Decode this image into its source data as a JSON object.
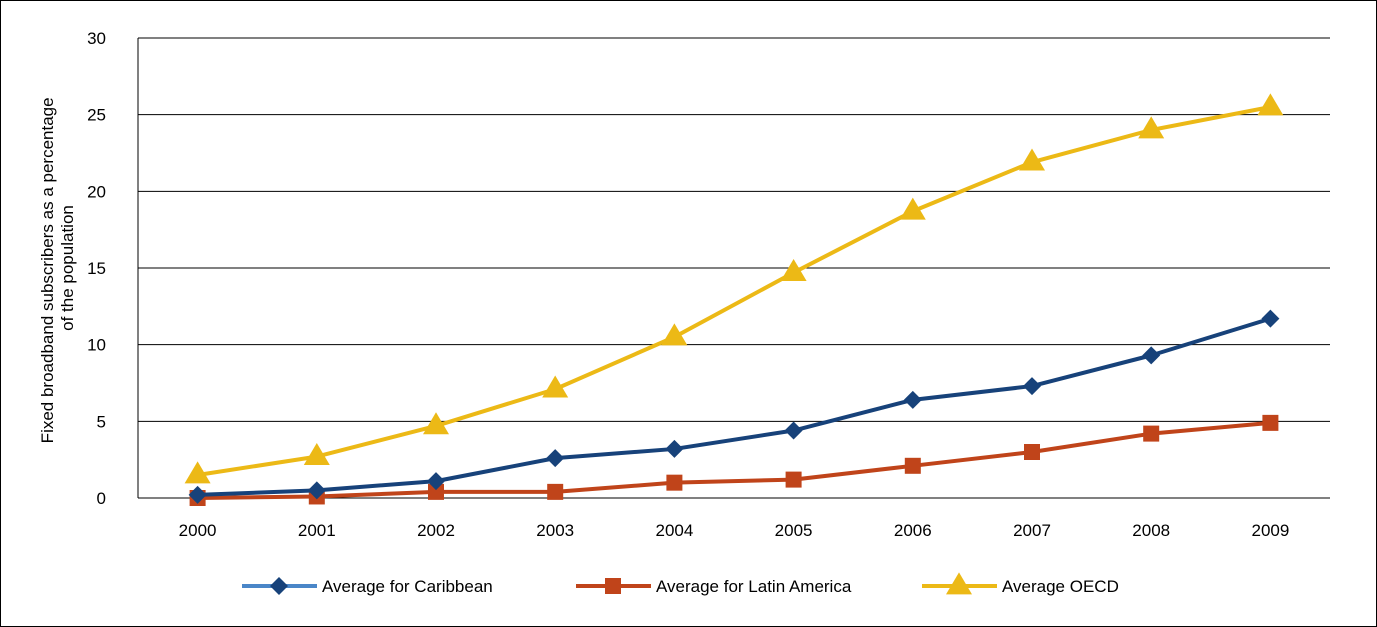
{
  "chart_data": {
    "type": "line",
    "title": "",
    "xlabel": "",
    "ylabel_lines": [
      "Fixed broadband subscribers as a percentage",
      "of the population"
    ],
    "categories": [
      "2000",
      "2001",
      "2002",
      "2003",
      "2004",
      "2005",
      "2006",
      "2007",
      "2008",
      "2009"
    ],
    "ylim": [
      0,
      30
    ],
    "yticks": [
      "0",
      "5",
      "10",
      "15",
      "20",
      "25",
      "30"
    ],
    "grid": true,
    "legend_position": "bottom",
    "series": [
      {
        "name": "Average for Caribbean",
        "color": "#17427A",
        "legend_line_color": "#4A86C8",
        "marker": "diamond",
        "values": [
          0.2,
          0.5,
          1.1,
          2.6,
          3.2,
          4.4,
          6.4,
          7.3,
          9.3,
          11.7
        ]
      },
      {
        "name": "Average for Latin America",
        "color": "#C0441A",
        "legend_line_color": "#C0441A",
        "marker": "square",
        "values": [
          0.0,
          0.1,
          0.4,
          0.4,
          1.0,
          1.2,
          2.1,
          3.0,
          4.2,
          4.9
        ]
      },
      {
        "name": "Average OECD",
        "color": "#ECB916",
        "legend_line_color": "#ECB916",
        "marker": "triangle",
        "values": [
          1.5,
          2.7,
          4.7,
          7.1,
          10.5,
          14.7,
          18.7,
          21.9,
          24.0,
          25.5
        ]
      }
    ]
  }
}
